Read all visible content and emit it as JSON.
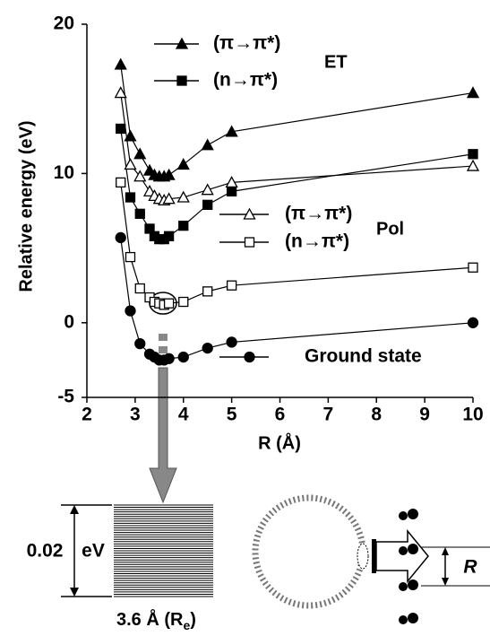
{
  "chart_data": {
    "type": "line",
    "y_label": "Relative energy (eV)",
    "x_label": "R (Å)",
    "xlim": [
      2,
      10
    ],
    "xticks": [
      2,
      3,
      4,
      5,
      6,
      7,
      8,
      9,
      10
    ],
    "ylim": [
      -5,
      20
    ],
    "yticks": [
      -5,
      0,
      10,
      20
    ],
    "x": [
      2.7,
      2.9,
      3.1,
      3.3,
      3.4,
      3.5,
      3.6,
      3.7,
      4.0,
      4.5,
      5.0,
      10
    ],
    "series": [
      {
        "name": "(π→π*)",
        "color": "#000000",
        "marker": "triangle",
        "filled": true,
        "values": [
          17.3,
          12.5,
          11.3,
          10.2,
          9.9,
          9.8,
          9.8,
          9.9,
          10.6,
          11.9,
          12.8,
          15.4
        ]
      },
      {
        "name": "(n→π*)",
        "color": "#000000",
        "marker": "square",
        "filled": true,
        "values": [
          13.0,
          8.4,
          7.3,
          6.3,
          5.8,
          5.6,
          5.6,
          5.8,
          6.5,
          7.9,
          8.8,
          11.3
        ]
      },
      {
        "name": "(π→π*)",
        "color": "#000000",
        "marker": "triangle",
        "filled": false,
        "values": [
          15.4,
          10.6,
          9.8,
          8.8,
          8.5,
          8.3,
          8.2,
          8.3,
          8.4,
          8.9,
          9.4,
          10.5
        ]
      },
      {
        "name": "(n→π*)",
        "color": "#000000",
        "marker": "square",
        "filled": false,
        "values": [
          9.4,
          4.4,
          2.3,
          1.7,
          1.4,
          1.3,
          1.2,
          1.3,
          1.4,
          2.1,
          2.5,
          3.7
        ]
      },
      {
        "name": "Ground state",
        "color": "#000000",
        "marker": "circle",
        "filled": true,
        "values": [
          5.7,
          0.8,
          -1.4,
          -2.1,
          -2.3,
          -2.5,
          -2.5,
          -2.4,
          -2.3,
          -1.7,
          -1.3,
          0.0
        ]
      }
    ],
    "group_labels": [
      "ET",
      "Pol"
    ]
  },
  "diagram": {
    "gap_value": "0.02",
    "gap_unit": "eV",
    "position_label": {
      "main": "3.6 Å (R",
      "sub": "e",
      "close": ")"
    },
    "distance_label": "R"
  }
}
